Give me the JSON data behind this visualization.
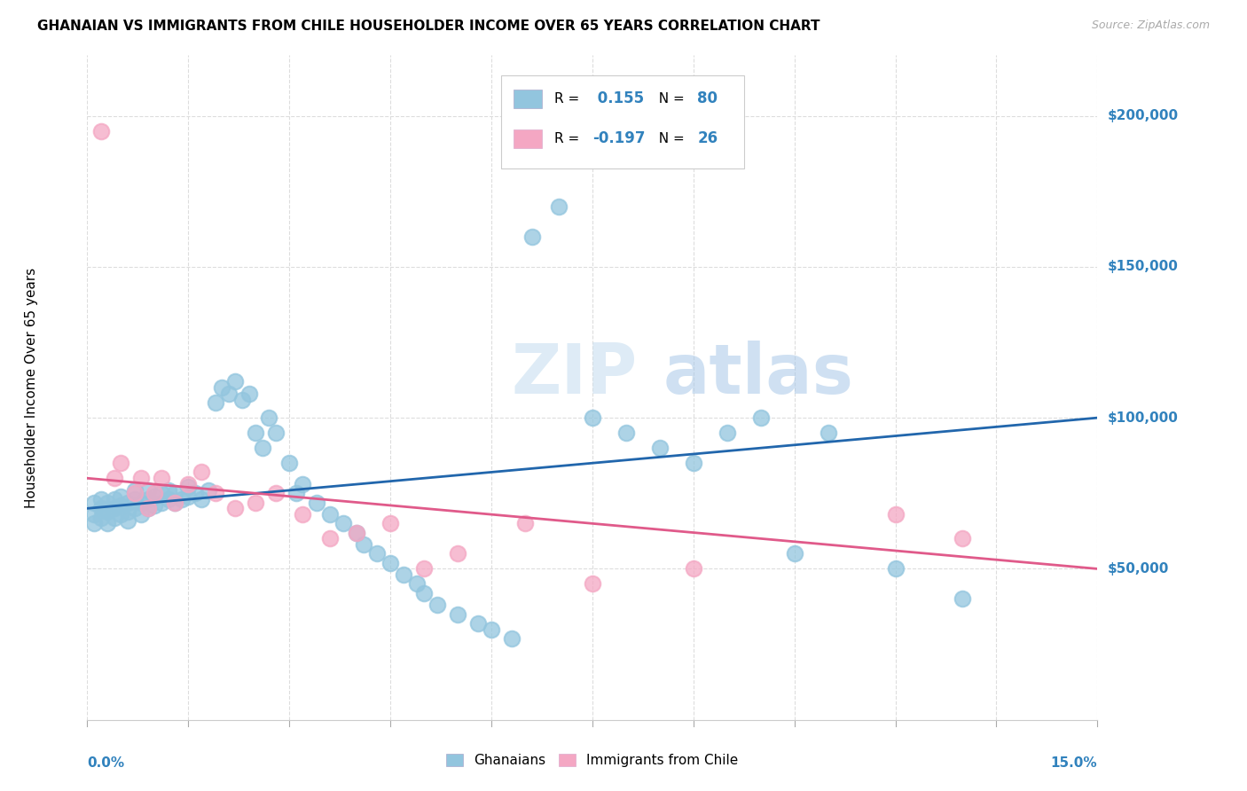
{
  "title": "GHANAIAN VS IMMIGRANTS FROM CHILE HOUSEHOLDER INCOME OVER 65 YEARS CORRELATION CHART",
  "source": "Source: ZipAtlas.com",
  "ylabel": "Householder Income Over 65 years",
  "legend_bottom": [
    "Ghanaians",
    "Immigrants from Chile"
  ],
  "r1": 0.155,
  "n1": 80,
  "r2": -0.197,
  "n2": 26,
  "color_blue": "#92c5de",
  "color_pink": "#f4a7c3",
  "color_blue_dark": "#2166ac",
  "color_pink_dark": "#e05a8a",
  "color_blue_text": "#3182bd",
  "watermark_color": "#c8dff0",
  "line_blue": "#2166ac",
  "line_pink": "#e05a8a",
  "ylim": [
    0,
    220000
  ],
  "xlim": [
    0.0,
    0.15
  ],
  "ytick_labels": [
    "$50,000",
    "$100,000",
    "$150,000",
    "$200,000"
  ],
  "ytick_values": [
    50000,
    100000,
    150000,
    200000
  ],
  "blue_x": [
    0.001,
    0.001,
    0.001,
    0.002,
    0.002,
    0.002,
    0.003,
    0.003,
    0.003,
    0.004,
    0.004,
    0.004,
    0.005,
    0.005,
    0.005,
    0.006,
    0.006,
    0.006,
    0.007,
    0.007,
    0.007,
    0.008,
    0.008,
    0.009,
    0.009,
    0.009,
    0.01,
    0.01,
    0.011,
    0.011,
    0.012,
    0.012,
    0.013,
    0.013,
    0.014,
    0.015,
    0.015,
    0.016,
    0.017,
    0.018,
    0.019,
    0.02,
    0.021,
    0.022,
    0.023,
    0.024,
    0.025,
    0.026,
    0.027,
    0.028,
    0.03,
    0.031,
    0.032,
    0.034,
    0.036,
    0.038,
    0.04,
    0.041,
    0.043,
    0.045,
    0.047,
    0.049,
    0.05,
    0.052,
    0.055,
    0.058,
    0.06,
    0.063,
    0.066,
    0.07,
    0.075,
    0.08,
    0.085,
    0.09,
    0.095,
    0.1,
    0.105,
    0.11,
    0.12,
    0.13
  ],
  "blue_y": [
    65000,
    68000,
    72000,
    67000,
    70000,
    73000,
    65000,
    69000,
    72000,
    67000,
    70000,
    73000,
    68000,
    71000,
    74000,
    66000,
    69000,
    72000,
    70000,
    73000,
    76000,
    68000,
    72000,
    70000,
    73000,
    76000,
    71000,
    74000,
    72000,
    75000,
    73000,
    76000,
    72000,
    75000,
    73000,
    74000,
    77000,
    75000,
    73000,
    76000,
    105000,
    110000,
    108000,
    112000,
    106000,
    108000,
    95000,
    90000,
    100000,
    95000,
    85000,
    75000,
    78000,
    72000,
    68000,
    65000,
    62000,
    58000,
    55000,
    52000,
    48000,
    45000,
    42000,
    38000,
    35000,
    32000,
    30000,
    27000,
    160000,
    170000,
    100000,
    95000,
    90000,
    85000,
    95000,
    100000,
    55000,
    95000,
    50000,
    40000
  ],
  "pink_x": [
    0.002,
    0.004,
    0.005,
    0.007,
    0.008,
    0.009,
    0.01,
    0.011,
    0.013,
    0.015,
    0.017,
    0.019,
    0.022,
    0.025,
    0.028,
    0.032,
    0.036,
    0.04,
    0.045,
    0.05,
    0.055,
    0.065,
    0.075,
    0.09,
    0.12,
    0.13
  ],
  "pink_y": [
    195000,
    80000,
    85000,
    75000,
    80000,
    70000,
    75000,
    80000,
    72000,
    78000,
    82000,
    75000,
    70000,
    72000,
    75000,
    68000,
    60000,
    62000,
    65000,
    50000,
    55000,
    65000,
    45000,
    50000,
    68000,
    60000
  ]
}
